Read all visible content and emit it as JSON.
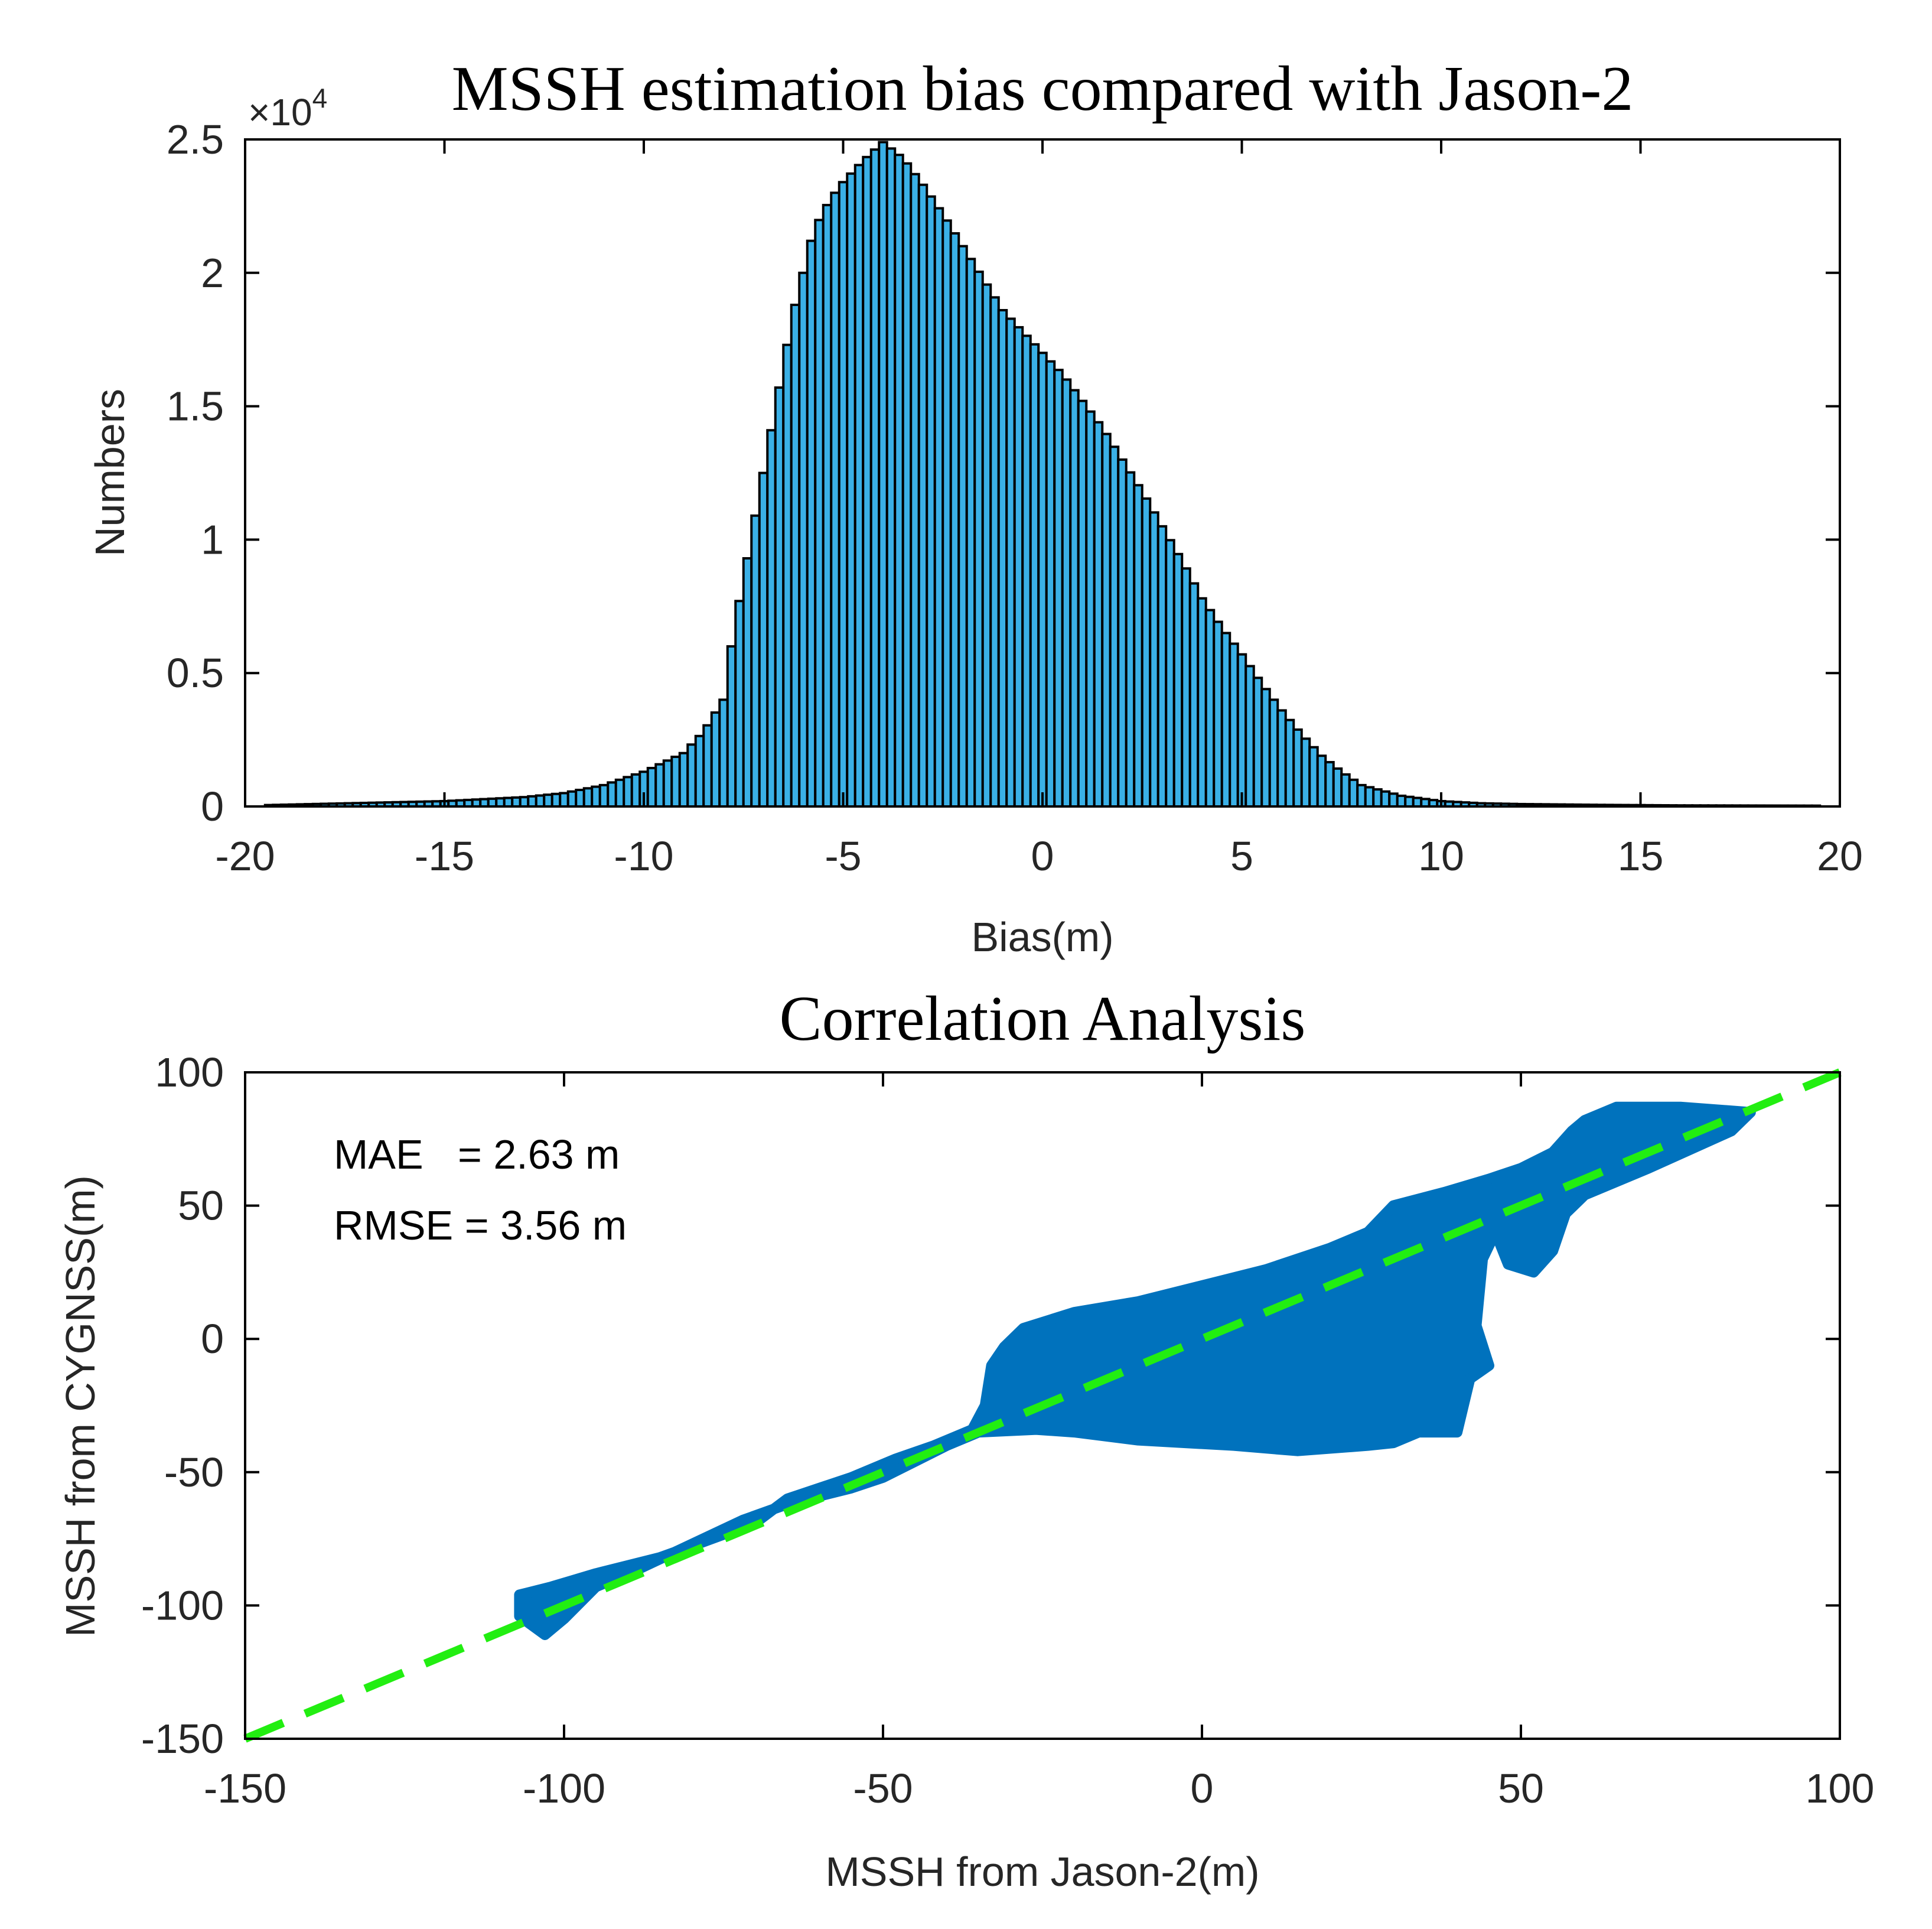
{
  "colors": {
    "bar_fill": "#3ab0e6",
    "bar_edge": "#000000",
    "scatter_fill": "#0072bd",
    "dashed_line": "#22ee11",
    "axis": "#000000",
    "text": "#262626"
  },
  "chart_data": [
    {
      "type": "bar",
      "kind": "histogram",
      "title": "MSSH estimation bias compared with Jason-2",
      "xlabel": "Bias(m)",
      "ylabel": "Numbers",
      "exponent_label": "×10",
      "exponent_power": "4",
      "xlim": [
        -20,
        20
      ],
      "ylim": [
        0,
        25000
      ],
      "xticks": [
        "-20",
        "-15",
        "-10",
        "-5",
        "0",
        "5",
        "10",
        "15",
        "20"
      ],
      "xtick_values": [
        -20,
        -15,
        -10,
        -5,
        0,
        5,
        10,
        15,
        20
      ],
      "yticks": [
        "0",
        "0.5",
        "1",
        "1.5",
        "2",
        "2.5"
      ],
      "ytick_values": [
        0,
        5000,
        10000,
        15000,
        20000,
        25000
      ],
      "bin_width": 0.2,
      "x_range": [
        -19.5,
        19.5
      ],
      "profile_x": [
        -19.5,
        -15,
        -13,
        -12,
        -11,
        -10,
        -9,
        -8.5,
        -8,
        -7.75,
        -7.5,
        -7.25,
        -7,
        -6.75,
        -6.5,
        -6.25,
        -6,
        -5.75,
        -5.5,
        -5.25,
        -5,
        -4.5,
        -4,
        -3.5,
        -3,
        -2.5,
        -2,
        -1.5,
        -1,
        -0.5,
        0,
        0.5,
        1,
        1.5,
        2,
        2.5,
        3,
        3.5,
        4,
        4.5,
        5,
        5.5,
        6,
        6.5,
        7,
        7.5,
        8,
        9,
        10,
        11,
        12,
        14,
        16,
        19.5
      ],
      "profile_y": [
        50,
        200,
        350,
        500,
        800,
        1300,
        2000,
        2800,
        4000,
        6500,
        8500,
        10500,
        12500,
        14500,
        16500,
        18500,
        20000,
        21500,
        22300,
        22900,
        23400,
        24200,
        24900,
        24300,
        23300,
        22200,
        21000,
        19800,
        18600,
        17800,
        17000,
        16200,
        15200,
        14200,
        13000,
        11800,
        10500,
        9200,
        7800,
        6700,
        5700,
        4600,
        3600,
        2700,
        1900,
        1300,
        800,
        400,
        200,
        120,
        90,
        60,
        40,
        30
      ]
    },
    {
      "type": "scatter",
      "title": "Correlation Analysis",
      "xlabel": "MSSH from Jason-2(m)",
      "ylabel": "MSSH from CYGNSS(m)",
      "xlim": [
        -150,
        100
      ],
      "ylim": [
        -150,
        100
      ],
      "xticks": [
        "-150",
        "-100",
        "-50",
        "0",
        "50",
        "100"
      ],
      "xtick_values": [
        -150,
        -100,
        -50,
        0,
        50,
        100
      ],
      "yticks": [
        "-150",
        "-100",
        "-50",
        "0",
        "50",
        "100"
      ],
      "ytick_values": [
        -150,
        -100,
        -50,
        0,
        50,
        100
      ],
      "annotations": [
        "MAE   = 2.63 m",
        "RMSE = 3.56 m"
      ],
      "reference_line": {
        "style": "dashed",
        "from": [
          -150,
          -150
        ],
        "to": [
          100,
          100
        ]
      },
      "point_cloud_outline": [
        [
          -107,
          -96
        ],
        [
          -102,
          -93
        ],
        [
          -95,
          -88
        ],
        [
          -85,
          -82
        ],
        [
          -78,
          -76
        ],
        [
          -70,
          -69
        ],
        [
          -65,
          -60
        ],
        [
          -55,
          -52
        ],
        [
          -48,
          -45
        ],
        [
          -42,
          -40
        ],
        [
          -36,
          -34
        ],
        [
          -34,
          -25
        ],
        [
          -33,
          -10
        ],
        [
          -31,
          -3
        ],
        [
          -28,
          4
        ],
        [
          -20,
          10
        ],
        [
          -10,
          14
        ],
        [
          0,
          20
        ],
        [
          10,
          26
        ],
        [
          20,
          34
        ],
        [
          26,
          40
        ],
        [
          30,
          50
        ],
        [
          38,
          55
        ],
        [
          45,
          60
        ],
        [
          50,
          64
        ],
        [
          55,
          70
        ],
        [
          58,
          78
        ],
        [
          60,
          82
        ],
        [
          65,
          87
        ],
        [
          75,
          87
        ],
        [
          86,
          85
        ],
        [
          83,
          78
        ],
        [
          70,
          64
        ],
        [
          60,
          54
        ],
        [
          57,
          47
        ],
        [
          55,
          33
        ],
        [
          52,
          25
        ],
        [
          48,
          28
        ],
        [
          46,
          40
        ],
        [
          44,
          30
        ],
        [
          43,
          5
        ],
        [
          45,
          -10
        ],
        [
          42,
          -15
        ],
        [
          40,
          -35
        ],
        [
          34,
          -35
        ],
        [
          30,
          -39
        ],
        [
          26,
          -40
        ],
        [
          15,
          -42
        ],
        [
          5,
          -40
        ],
        [
          -10,
          -38
        ],
        [
          -20,
          -35
        ],
        [
          -26,
          -34
        ],
        [
          -35,
          -35
        ],
        [
          -40,
          -40
        ],
        [
          -45,
          -46
        ],
        [
          -50,
          -52
        ],
        [
          -55,
          -56
        ],
        [
          -65,
          -62
        ],
        [
          -72,
          -68
        ],
        [
          -80,
          -77
        ],
        [
          -88,
          -86
        ],
        [
          -95,
          -93
        ],
        [
          -100,
          -105
        ],
        [
          -103,
          -111
        ],
        [
          -107,
          -104
        ]
      ]
    }
  ]
}
